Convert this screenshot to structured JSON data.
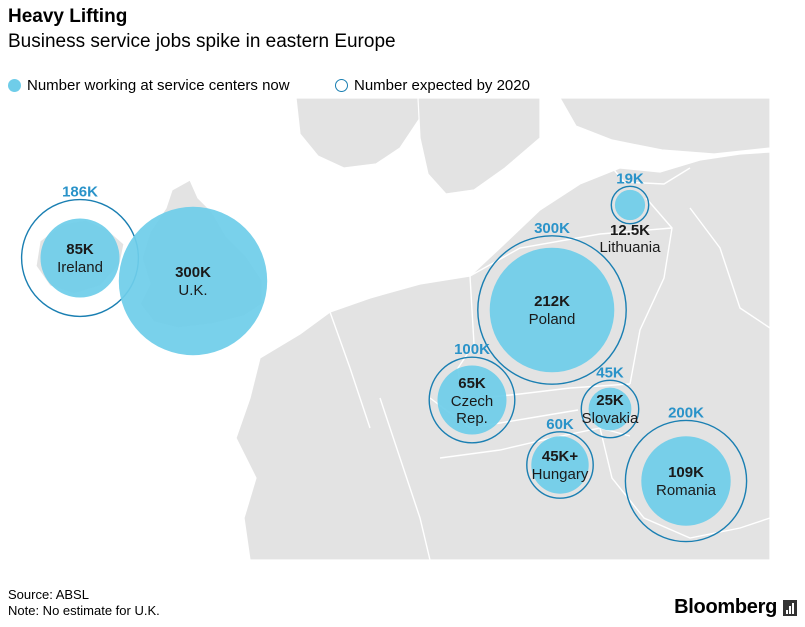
{
  "header": {
    "title": "Heavy Lifting",
    "subtitle": "Business service jobs spike in eastern Europe"
  },
  "legend": {
    "current_label": "Number working at service centers now",
    "expected_label": "Number expected by 2020"
  },
  "colors": {
    "current_fill": "#6fcde9",
    "expected_ring": "#1a7fb2",
    "expected_label": "#2a93c9",
    "land": "#e3e3e3",
    "sea": "#ffffff",
    "border": "#ffffff"
  },
  "chart_data": {
    "type": "bubble-map",
    "title": "Heavy Lifting",
    "subtitle": "Business service jobs spike in eastern Europe",
    "series": [
      {
        "name": "Number working at service centers now",
        "key": "current"
      },
      {
        "name": "Number expected by 2020",
        "key": "expected"
      }
    ],
    "points": [
      {
        "country": "Ireland",
        "current": 85000,
        "current_label": "85K",
        "expected": 186000,
        "expected_label": "186K"
      },
      {
        "country": "U.K.",
        "current": 300000,
        "current_label": "300K",
        "expected": null,
        "expected_label": ""
      },
      {
        "country": "Lithuania",
        "current": 12500,
        "current_label": "12.5K",
        "expected": 19000,
        "expected_label": "19K"
      },
      {
        "country": "Poland",
        "current": 212000,
        "current_label": "212K",
        "expected": 300000,
        "expected_label": "300K"
      },
      {
        "country": "Czech Rep.",
        "current": 65000,
        "current_label": "65K",
        "expected": 100000,
        "expected_label": "100K"
      },
      {
        "country": "Slovakia",
        "current": 25000,
        "current_label": "25K",
        "expected": 45000,
        "expected_label": "45K"
      },
      {
        "country": "Hungary",
        "current": 45000,
        "current_label": "45K+",
        "expected": 60000,
        "expected_label": "60K"
      },
      {
        "country": "Romania",
        "current": 109000,
        "current_label": "109K",
        "expected": 200000,
        "expected_label": "200K"
      }
    ]
  },
  "footer": {
    "source": "Source: ABSL",
    "note": "Note: No estimate for U.K."
  },
  "brand": {
    "name": "Bloomberg"
  }
}
